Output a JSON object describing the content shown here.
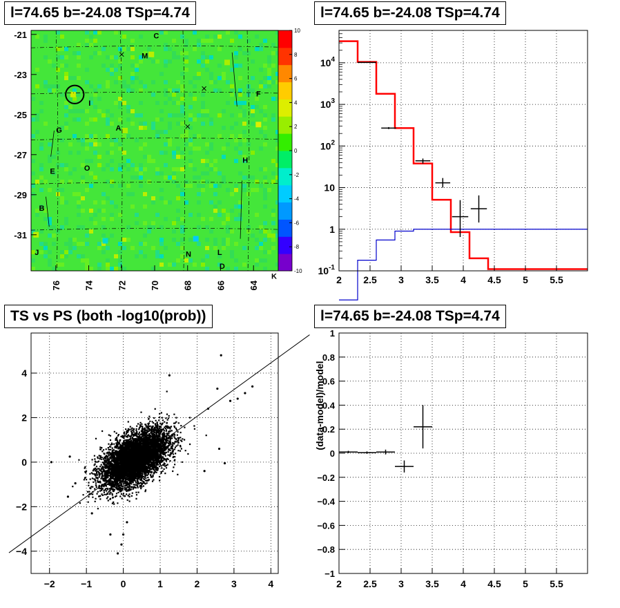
{
  "chart_data": [
    {
      "panel": "top-left",
      "type": "heatmap",
      "title": "l=74.65 b=-24.08 TSp=4.74",
      "xlim": [
        62.5,
        77.5
      ],
      "ylim": [
        -32.8,
        -20.8
      ],
      "x_reversed": true,
      "x_ticks": [
        "76",
        "74",
        "72",
        "70",
        "68",
        "66",
        "64"
      ],
      "x_tick_values": [
        76,
        74,
        72,
        70,
        68,
        66,
        64
      ],
      "y_ticks": [
        "-21",
        "-23",
        "-25",
        "-27",
        "-29",
        "-31"
      ],
      "y_tick_values": [
        -21,
        -23,
        -25,
        -27,
        -29,
        -31
      ],
      "colorbar": {
        "range": [
          -10,
          10
        ],
        "ticks": [
          "10",
          "8",
          "6",
          "4",
          "2",
          "0",
          "-2",
          "-4",
          "-6",
          "-8",
          "-10"
        ],
        "tick_values": [
          10,
          8,
          6,
          4,
          2,
          0,
          -2,
          -4,
          -6,
          -8,
          -10
        ],
        "colors": [
          "#7700cc",
          "#3300ff",
          "#0055ff",
          "#0099ff",
          "#00ccff",
          "#00eecc",
          "#00ee66",
          "#33ee00",
          "#99ee00",
          "#ddee00",
          "#ffcc00",
          "#ff8800",
          "#ff3300",
          "#ff0000"
        ]
      },
      "background_color": "#44e63a",
      "source_circle": {
        "x": 74.85,
        "y": -24.0,
        "r": 0.55
      },
      "letters": [
        {
          "t": "C",
          "x": 69.9,
          "y": -21.2
        },
        {
          "t": "M",
          "x": 70.6,
          "y": -22.2
        },
        {
          "t": "F",
          "x": 63.7,
          "y": -24.1
        },
        {
          "t": "I",
          "x": 73.95,
          "y": -24.55
        },
        {
          "t": "G",
          "x": 75.8,
          "y": -25.9
        },
        {
          "t": "A",
          "x": 72.2,
          "y": -25.8
        },
        {
          "t": "H",
          "x": 64.5,
          "y": -27.4
        },
        {
          "t": "O",
          "x": 74.1,
          "y": -27.8
        },
        {
          "t": "E",
          "x": 76.2,
          "y": -27.95
        },
        {
          "t": "B",
          "x": 76.85,
          "y": -29.8
        },
        {
          "t": "J",
          "x": 77.15,
          "y": -32.0
        },
        {
          "t": "N",
          "x": 67.95,
          "y": -32.1
        },
        {
          "t": "L",
          "x": 66.05,
          "y": -32.0
        },
        {
          "t": "D",
          "x": 65.9,
          "y": -32.7
        },
        {
          "t": "K",
          "x": 62.75,
          "y": -33.2
        }
      ],
      "crosses": [
        {
          "x": 72.0,
          "y": -22.0
        },
        {
          "x": 67.0,
          "y": -23.7
        },
        {
          "x": 68.0,
          "y": -25.6
        }
      ]
    },
    {
      "panel": "top-right",
      "type": "line",
      "title": "l=74.65 b=-24.08 TSp=4.74",
      "xlim": [
        2,
        6
      ],
      "ylim": [
        0.1,
        60000
      ],
      "yscale": "log",
      "grid": true,
      "x_ticks": [
        "2",
        "2.5",
        "3",
        "3.5",
        "4",
        "4.5",
        "5",
        "5.5"
      ],
      "x_tick_values": [
        2,
        2.5,
        3,
        3.5,
        4,
        4.5,
        5,
        5.5
      ],
      "y_ticks": [
        "10^-1",
        "1",
        "10",
        "10^2",
        "10^3",
        "10^4"
      ],
      "y_tick_values": [
        0.1,
        1,
        10,
        100,
        1000,
        10000
      ],
      "series": [
        {
          "color": "#ff0000",
          "style": "step",
          "bins": [
            2.0,
            2.3,
            2.6,
            2.9,
            3.2,
            3.5,
            3.8,
            4.1,
            4.4,
            6.0
          ],
          "values": [
            33000,
            10500,
            1800,
            270,
            38,
            5.1,
            0.85,
            0.2,
            0.11
          ]
        },
        {
          "color": "#0000cc",
          "style": "step",
          "bins": [
            2.0,
            2.3,
            2.6,
            2.9,
            3.2,
            3.5,
            3.8,
            4.1,
            4.4,
            6.0
          ],
          "values": [
            0.02,
            0.18,
            0.55,
            0.9,
            1.0,
            1.0,
            1.0,
            1.0,
            1.0
          ]
        },
        {
          "color": "#000000",
          "style": "errorbar",
          "points": [
            {
              "x": 2.45,
              "y": 10200,
              "xerr": 0.15,
              "ylo": 10000,
              "yhi": 10400
            },
            {
              "x": 2.8,
              "y": 270,
              "xerr": 0.12,
              "ylo": 255,
              "yhi": 285
            },
            {
              "x": 3.35,
              "y": 44,
              "xerr": 0.12,
              "ylo": 38,
              "yhi": 50
            },
            {
              "x": 3.67,
              "y": 13,
              "xerr": 0.12,
              "ylo": 10,
              "yhi": 17
            },
            {
              "x": 3.95,
              "y": 2,
              "xerr": 0.13,
              "ylo": 0.65,
              "yhi": 5
            },
            {
              "x": 4.25,
              "y": 3.1,
              "xerr": 0.13,
              "ylo": 1.45,
              "yhi": 6.5
            }
          ]
        }
      ]
    },
    {
      "panel": "bottom-left",
      "type": "scatter",
      "title": "TS vs PS (both -log10(prob))",
      "xlim": [
        -2.5,
        4.2
      ],
      "ylim": [
        -5,
        5.8
      ],
      "grid": true,
      "x_ticks": [
        "−2",
        "−1",
        "0",
        "1",
        "2",
        "3",
        "4"
      ],
      "x_tick_values": [
        -2,
        -1,
        0,
        1,
        2,
        3,
        4
      ],
      "y_ticks": [
        "−4",
        "−2",
        "0",
        "2",
        "4"
      ],
      "y_tick_values": [
        -4,
        -2,
        0,
        2,
        4
      ],
      "cloud": {
        "n": 9000,
        "center_x": 0.3,
        "center_y": 0.2,
        "sx": 0.45,
        "sy": 0.65,
        "corr": 0.55,
        "min_x": -2.1,
        "max_x": 4.1
      },
      "outliers": [
        {
          "x": 2.65,
          "y": 4.8
        },
        {
          "x": 3.5,
          "y": 3.4
        },
        {
          "x": 3.1,
          "y": 2.85
        },
        {
          "x": 2.9,
          "y": 2.75
        },
        {
          "x": 3.3,
          "y": 3.1
        },
        {
          "x": 2.55,
          "y": 3.3
        },
        {
          "x": -1.95,
          "y": 0.0
        },
        {
          "x": -1.5,
          "y": -1.55
        },
        {
          "x": -0.85,
          "y": -2.3
        },
        {
          "x": -0.15,
          "y": -4.1
        },
        {
          "x": -0.05,
          "y": -3.7
        },
        {
          "x": 1.25,
          "y": 3.9
        },
        {
          "x": 2.6,
          "y": 0.6
        },
        {
          "x": 2.75,
          "y": -0.05
        },
        {
          "x": -0.35,
          "y": -3.25
        },
        {
          "x": 0.1,
          "y": -2.7
        },
        {
          "x": 2.3,
          "y": 2.4
        },
        {
          "x": 2.2,
          "y": -0.4
        },
        {
          "x": -1.3,
          "y": -0.95
        },
        {
          "x": -1.45,
          "y": 0.25
        },
        {
          "x": 0.0,
          "y": -3.25
        }
      ],
      "fit_line": {
        "x": [
          -2.5,
          4.2
        ],
        "y": [
          -3.35,
          4.7
        ]
      }
    },
    {
      "panel": "bottom-right",
      "type": "scatter",
      "title": "l=74.65 b=-24.08 TSp=4.74",
      "xlim": [
        2,
        6
      ],
      "ylim": [
        -1,
        1
      ],
      "grid": true,
      "ylabel": "(data-model)/model",
      "x_ticks": [
        "2",
        "2.5",
        "3",
        "3.5",
        "4",
        "4.5",
        "5",
        "5.5"
      ],
      "x_tick_values": [
        2,
        2.5,
        3,
        3.5,
        4,
        4.5,
        5,
        5.5
      ],
      "y_ticks": [
        "−1",
        "−0.8",
        "−0.6",
        "−0.4",
        "−0.2",
        "0",
        "0.2",
        "0.4",
        "0.6",
        "0.8",
        "1"
      ],
      "y_tick_values": [
        -1,
        -0.8,
        -0.6,
        -0.4,
        -0.2,
        0,
        0.2,
        0.4,
        0.6,
        0.8,
        1
      ],
      "points": [
        {
          "x": 2.15,
          "y": 0.01,
          "xerr": 0.15,
          "yerr": 0.01
        },
        {
          "x": 2.45,
          "y": 0.005,
          "xerr": 0.15,
          "yerr": 0.01
        },
        {
          "x": 2.75,
          "y": 0.01,
          "xerr": 0.15,
          "yerr": 0.02
        },
        {
          "x": 3.05,
          "y": -0.11,
          "xerr": 0.15,
          "yerr": 0.05
        },
        {
          "x": 3.35,
          "y": 0.22,
          "xerr": 0.15,
          "yerr": 0.18
        }
      ]
    }
  ]
}
